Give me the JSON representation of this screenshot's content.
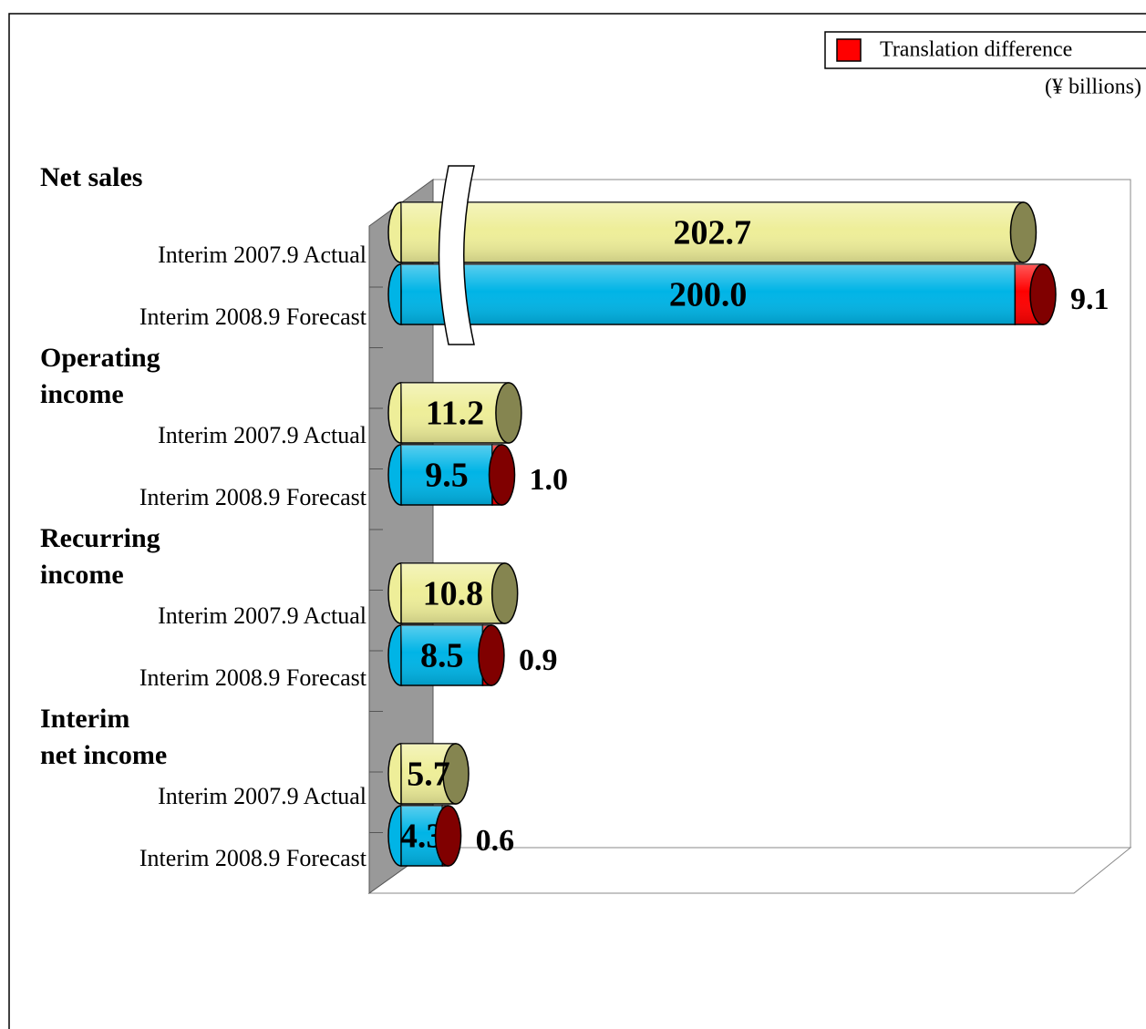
{
  "chart_data": {
    "type": "cylinder_bar",
    "unit": "(¥ billions)",
    "groups": [
      "Net sales",
      "Operating\nincome",
      "Recurring\nincome",
      "Interim\nnet income"
    ],
    "axis_break": [
      true,
      false,
      false,
      false
    ],
    "xlim": [
      0,
      76
    ],
    "series": [
      {
        "name": "Interim 2007.9 Actual",
        "color": "#eeee99",
        "cap": "#858550",
        "values": [
          202.7,
          11.2,
          10.8,
          5.7
        ]
      },
      {
        "name": "Interim 2008.9 Forecast",
        "color": "#00b4e6",
        "values": [
          200.0,
          9.5,
          8.5,
          4.3
        ],
        "value_labels": [
          "200.0",
          "9.5",
          "8.5",
          "4.3"
        ]
      },
      {
        "name": "Translation difference",
        "color": "#ff0000",
        "cap": "#800000",
        "values": [
          9.1,
          1.0,
          0.9,
          0.6
        ],
        "value_labels": [
          "9.1",
          "1.0",
          "0.9",
          "0.6"
        ],
        "show_in_legend": true,
        "stack_on": 1
      }
    ]
  }
}
